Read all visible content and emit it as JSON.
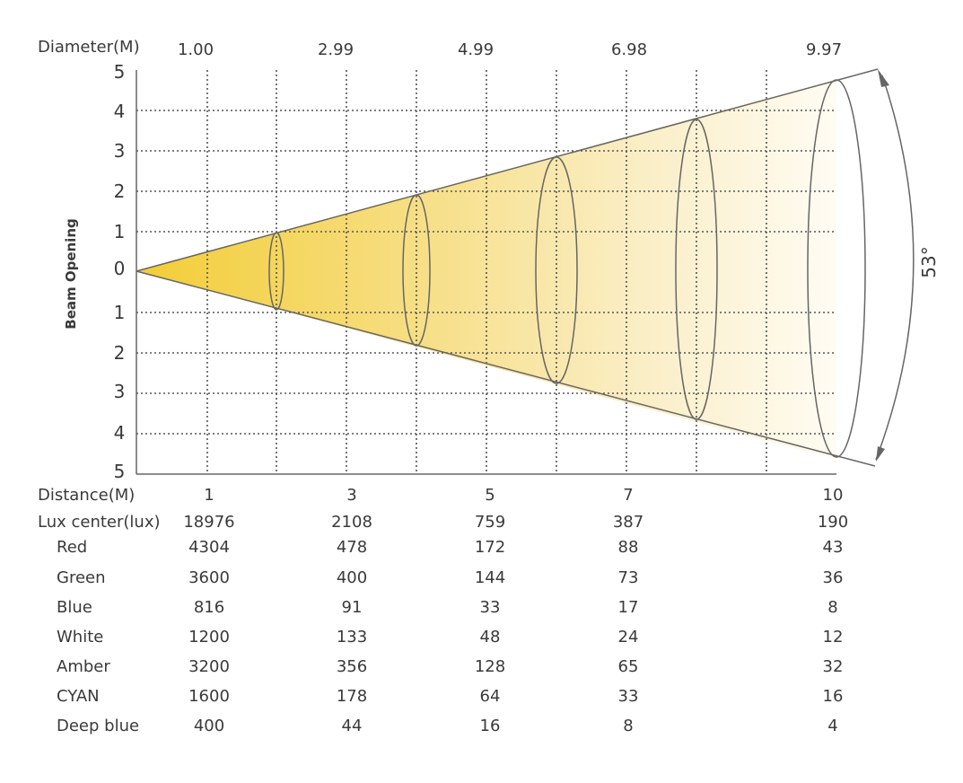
{
  "diagram": {
    "diameter_label": "Diameter(M)",
    "diameter_values": [
      "1.00",
      "2.99",
      "4.99",
      "6.98",
      "9.97"
    ],
    "beam_opening_label": "Beam Opening",
    "y_ticks": [
      "5",
      "4",
      "3",
      "2",
      "1",
      "0",
      "1",
      "2",
      "3",
      "4",
      "5"
    ],
    "angle_label": "53°"
  },
  "table": {
    "rows": [
      {
        "label": "Distance(M)",
        "values": [
          "1",
          "3",
          "5",
          "7",
          "10"
        ]
      },
      {
        "label": "Lux center(lux)",
        "values": [
          "18976",
          "2108",
          "759",
          "387",
          "190"
        ]
      },
      {
        "label": "Red",
        "values": [
          "4304",
          "478",
          "172",
          "88",
          "43"
        ]
      },
      {
        "label": "Green",
        "values": [
          "3600",
          "400",
          "144",
          "73",
          "36"
        ]
      },
      {
        "label": "Blue",
        "values": [
          "816",
          "91",
          "33",
          "17",
          "8"
        ]
      },
      {
        "label": "White",
        "values": [
          "1200",
          "133",
          "48",
          "24",
          "12"
        ]
      },
      {
        "label": "Amber",
        "values": [
          "3200",
          "356",
          "128",
          "65",
          "32"
        ]
      },
      {
        "label": "CYAN",
        "values": [
          "1600",
          "178",
          "64",
          "33",
          "16"
        ]
      },
      {
        "label": "Deep blue",
        "values": [
          "400",
          "44",
          "16",
          "8",
          "4"
        ]
      }
    ]
  },
  "colors": {
    "beam_start": "#f4cf3a",
    "beam_end": "#fffdf6",
    "line": "#666666"
  }
}
